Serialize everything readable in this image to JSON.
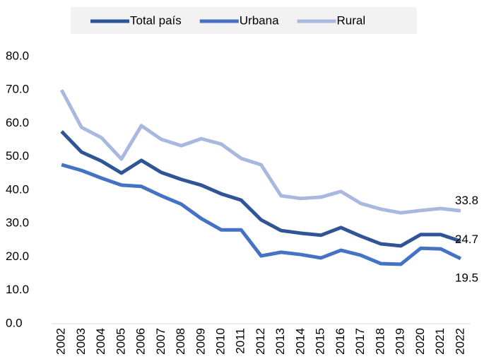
{
  "chart_data": {
    "type": "line",
    "categories": [
      "2002",
      "2003",
      "2004",
      "2005",
      "2006",
      "2007",
      "2008",
      "2009",
      "2010",
      "2011",
      "2012",
      "2013",
      "2014",
      "2015",
      "2016",
      "2017",
      "2018",
      "2019",
      "2020",
      "2021",
      "2022"
    ],
    "series": [
      {
        "name": "Total país",
        "color": "#2f5597",
        "values": [
          57.6,
          51.4,
          48.7,
          45.1,
          48.9,
          45.3,
          43.2,
          41.5,
          38.9,
          37.0,
          31.1,
          27.9,
          27.1,
          26.5,
          28.8,
          26.2,
          23.9,
          23.3,
          26.7,
          26.7,
          24.7
        ],
        "value_labels": [
          null,
          null,
          null,
          null,
          null,
          null,
          null,
          null,
          null,
          null,
          null,
          null,
          null,
          null,
          null,
          null,
          null,
          null,
          null,
          null,
          "24.7"
        ]
      },
      {
        "name": "Urbana",
        "color": "#4472c4",
        "values": [
          47.6,
          45.9,
          43.6,
          41.5,
          41.1,
          38.3,
          35.8,
          31.5,
          28.1,
          28.1,
          20.3,
          21.4,
          20.7,
          19.7,
          22.0,
          20.5,
          18.0,
          17.8,
          22.6,
          22.4,
          19.5
        ],
        "value_labels": [
          null,
          null,
          null,
          null,
          null,
          null,
          null,
          null,
          null,
          null,
          null,
          null,
          null,
          null,
          null,
          null,
          null,
          null,
          null,
          null,
          "19.5"
        ]
      },
      {
        "name": "Rural",
        "color": "#a9b8de",
        "values": [
          70.0,
          58.8,
          55.7,
          49.3,
          59.3,
          55.2,
          53.3,
          55.4,
          53.8,
          49.5,
          47.6,
          38.3,
          37.5,
          37.9,
          39.6,
          36.0,
          34.3,
          33.2,
          33.9,
          34.5,
          33.8
        ],
        "value_labels": [
          null,
          null,
          null,
          null,
          null,
          null,
          null,
          null,
          null,
          null,
          null,
          null,
          null,
          null,
          null,
          null,
          null,
          null,
          null,
          null,
          "33.8"
        ]
      }
    ],
    "ylim": [
      0,
      80
    ],
    "yticks": [
      {
        "value": 0,
        "label": "0.0"
      },
      {
        "value": 10,
        "label": "10.0"
      },
      {
        "value": 20,
        "label": "20.0"
      },
      {
        "value": 30,
        "label": "30.0"
      },
      {
        "value": 40,
        "label": "40.0"
      },
      {
        "value": 50,
        "label": "50.0"
      },
      {
        "value": 60,
        "label": "60.0"
      },
      {
        "value": 70,
        "label": "70.0"
      },
      {
        "value": 80,
        "label": "80.0"
      }
    ],
    "legend": "top",
    "grid": false
  }
}
